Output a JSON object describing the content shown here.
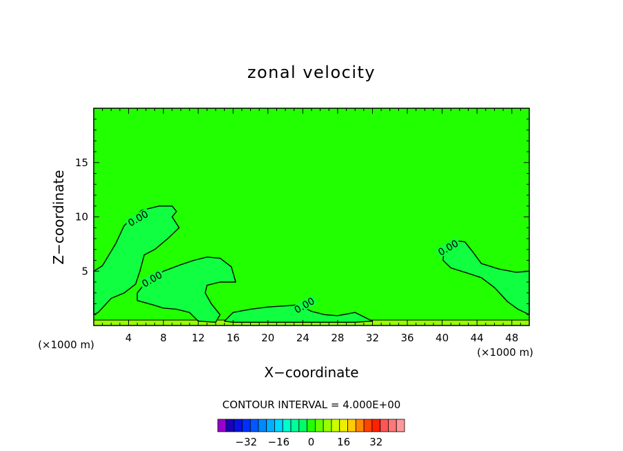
{
  "chart_data": {
    "type": "contour",
    "title": "zonal velocity",
    "xlabel": "X−coordinate",
    "ylabel": "Z−coordinate",
    "x_units_left": "(×1000 m)",
    "x_units_right": "(×1000 m)",
    "xlim": [
      0,
      50
    ],
    "ylim": [
      0,
      20
    ],
    "x_ticks": [
      4,
      8,
      12,
      16,
      20,
      24,
      28,
      32,
      36,
      40,
      44,
      48
    ],
    "y_ticks": [
      5,
      10,
      15
    ],
    "grid": false,
    "background_level_color": "#22ff00",
    "contours": [
      {
        "level": 0,
        "label": "0.00",
        "label_at": [
          5.2,
          9.7
        ],
        "fill_color": "#10ff40",
        "points": [
          [
            0,
            5.0
          ],
          [
            1.0,
            5.5
          ],
          [
            2.5,
            7.5
          ],
          [
            3.5,
            9.2
          ],
          [
            5.5,
            10.6
          ],
          [
            7.5,
            11.0
          ],
          [
            9.0,
            11.0
          ],
          [
            9.5,
            10.5
          ],
          [
            9.0,
            10.0
          ],
          [
            9.8,
            9.0
          ],
          [
            8.5,
            8.0
          ],
          [
            7.0,
            7.0
          ],
          [
            5.8,
            6.5
          ],
          [
            5.3,
            5.0
          ],
          [
            4.8,
            3.8
          ],
          [
            3.5,
            3.0
          ],
          [
            2.0,
            2.5
          ],
          [
            1.2,
            1.8
          ],
          [
            0.5,
            1.2
          ],
          [
            0.0,
            1.0
          ]
        ]
      },
      {
        "level": 0,
        "label": "0.00",
        "label_at": [
          6.8,
          4.1
        ],
        "fill_color": "#10ff40",
        "points": [
          [
            5.0,
            2.3
          ],
          [
            5.0,
            3.0
          ],
          [
            6.0,
            4.0
          ],
          [
            8.0,
            5.0
          ],
          [
            10.0,
            5.6
          ],
          [
            11.5,
            6.0
          ],
          [
            13.0,
            6.3
          ],
          [
            14.5,
            6.2
          ],
          [
            15.8,
            5.4
          ],
          [
            16.3,
            4.0
          ],
          [
            14.5,
            4.0
          ],
          [
            13.0,
            3.7
          ],
          [
            12.8,
            3.0
          ],
          [
            13.5,
            2.0
          ],
          [
            14.5,
            1.0
          ],
          [
            14.0,
            0.3
          ],
          [
            12.0,
            0.4
          ],
          [
            11.0,
            1.2
          ],
          [
            9.5,
            1.5
          ],
          [
            8.0,
            1.6
          ],
          [
            6.8,
            1.9
          ]
        ]
      },
      {
        "level": 0,
        "label": "0.00",
        "label_at": [
          40.8,
          7.0
        ],
        "fill_color": "#10ff40",
        "points": [
          [
            40.2,
            6.8
          ],
          [
            40.8,
            7.4
          ],
          [
            41.5,
            7.8
          ],
          [
            42.6,
            7.7
          ],
          [
            43.5,
            6.8
          ],
          [
            44.5,
            5.7
          ],
          [
            46.5,
            5.2
          ],
          [
            48.5,
            4.9
          ],
          [
            50.0,
            5.0
          ],
          [
            50.0,
            1.0
          ],
          [
            48.7,
            1.5
          ],
          [
            47.5,
            2.2
          ],
          [
            46.0,
            3.5
          ],
          [
            44.5,
            4.4
          ],
          [
            43.0,
            4.8
          ],
          [
            41.0,
            5.3
          ],
          [
            40.1,
            6.0
          ]
        ]
      },
      {
        "level": 0,
        "label": "0.00",
        "label_at": [
          24.3,
          1.7
        ],
        "fill_color": "#10ff40",
        "points": [
          [
            15.0,
            0.4
          ],
          [
            16.0,
            1.2
          ],
          [
            18.0,
            1.5
          ],
          [
            20.0,
            1.7
          ],
          [
            22.0,
            1.8
          ],
          [
            23.5,
            1.9
          ],
          [
            25.0,
            1.3
          ],
          [
            26.5,
            1.0
          ],
          [
            28.0,
            0.9
          ],
          [
            30.0,
            1.2
          ],
          [
            31.0,
            0.8
          ],
          [
            32.0,
            0.4
          ],
          [
            30.0,
            0.3
          ],
          [
            26.0,
            0.3
          ],
          [
            20.0,
            0.3
          ],
          [
            16.0,
            0.3
          ]
        ]
      }
    ],
    "surface_band": {
      "ylim": [
        0,
        0.5
      ],
      "color": "#99ff00"
    },
    "colorbar": {
      "title": "CONTOUR INTERVAL = 4.000E+00",
      "interval": 4,
      "colors": [
        "#9900cc",
        "#1a00b0",
        "#0a10e0",
        "#0030ff",
        "#0058ff",
        "#0088ff",
        "#00b0ff",
        "#00d8ff",
        "#00ffcc",
        "#00ff99",
        "#00ff66",
        "#22ff00",
        "#66ff00",
        "#99ff00",
        "#ccff00",
        "#eeee00",
        "#ffcc00",
        "#ff8800",
        "#ff4400",
        "#ff2200",
        "#ff5555",
        "#ff7777",
        "#ff9999"
      ],
      "tick_values": [
        -32,
        -16,
        0,
        16,
        32
      ],
      "tick_labels": [
        "−32",
        "−16",
        "0",
        "16",
        "32"
      ]
    }
  }
}
